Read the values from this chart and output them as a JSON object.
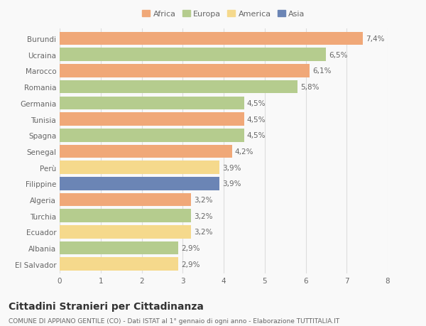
{
  "categories": [
    "Burundi",
    "Ucraina",
    "Marocco",
    "Romania",
    "Germania",
    "Tunisia",
    "Spagna",
    "Senegal",
    "Perù",
    "Filippine",
    "Algeria",
    "Turchia",
    "Ecuador",
    "Albania",
    "El Salvador"
  ],
  "values": [
    7.4,
    6.5,
    6.1,
    5.8,
    4.5,
    4.5,
    4.5,
    4.2,
    3.9,
    3.9,
    3.2,
    3.2,
    3.2,
    2.9,
    2.9
  ],
  "labels": [
    "7,4%",
    "6,5%",
    "6,1%",
    "5,8%",
    "4,5%",
    "4,5%",
    "4,5%",
    "4,2%",
    "3,9%",
    "3,9%",
    "3,2%",
    "3,2%",
    "3,2%",
    "2,9%",
    "2,9%"
  ],
  "continents": [
    "Africa",
    "Europa",
    "Africa",
    "Europa",
    "Europa",
    "Africa",
    "Europa",
    "Africa",
    "America",
    "Asia",
    "Africa",
    "Europa",
    "America",
    "Europa",
    "America"
  ],
  "colors": {
    "Africa": "#F0A878",
    "Europa": "#B5CC8E",
    "America": "#F5D98C",
    "Asia": "#6B85B5"
  },
  "legend_items": [
    "Africa",
    "Europa",
    "America",
    "Asia"
  ],
  "legend_colors": [
    "#F0A878",
    "#B5CC8E",
    "#F5D98C",
    "#6B85B5"
  ],
  "title": "Cittadini Stranieri per Cittadinanza",
  "subtitle": "COMUNE DI APPIANO GENTILE (CO) - Dati ISTAT al 1° gennaio di ogni anno - Elaborazione TUTTITALIA.IT",
  "xlim": [
    0,
    8
  ],
  "xticks": [
    0,
    1,
    2,
    3,
    4,
    5,
    6,
    7,
    8
  ],
  "background_color": "#f9f9f9",
  "bar_height": 0.82,
  "grid_color": "#dddddd",
  "text_color": "#666666",
  "label_fontsize": 7.5,
  "tick_fontsize": 7.5,
  "ytick_fontsize": 7.5,
  "title_fontsize": 10,
  "subtitle_fontsize": 6.5,
  "legend_fontsize": 8
}
